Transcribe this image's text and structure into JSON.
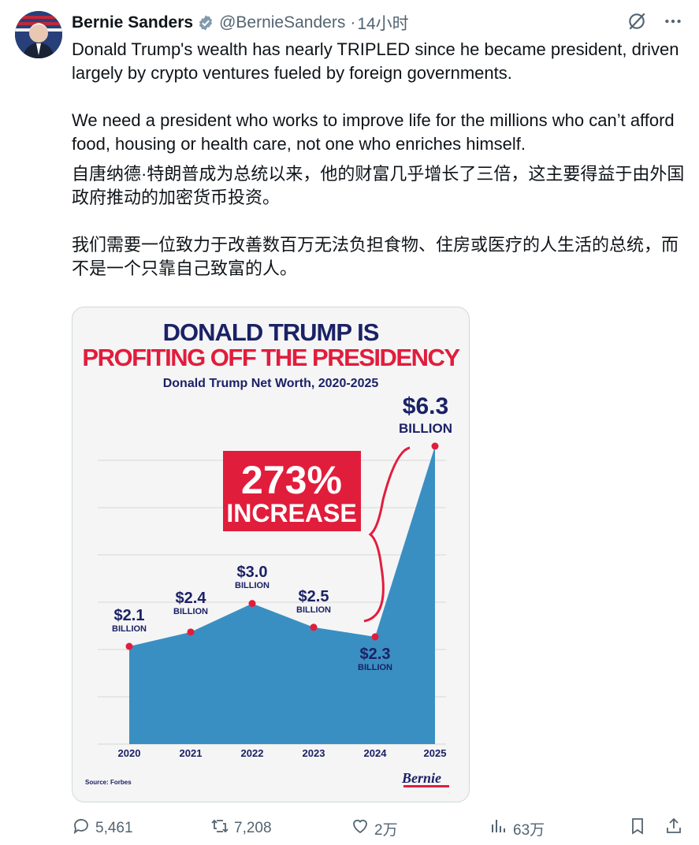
{
  "tweet": {
    "author_name": "Bernie Sanders",
    "handle": "@BernieSanders",
    "separator": "·",
    "time": "14小时",
    "text_en_p1": "Donald Trump's wealth has nearly TRIPLED since he became president, driven largely by crypto ventures fueled by foreign governments.",
    "text_en_p2": "We need a president who works to improve life for the millions who can’t afford food, housing or health care, not one who enriches himself.",
    "text_zh_p1": "自唐纳德·特朗普成为总统以来，他的财富几乎增长了三倍，这主要得益于由外国政府推动的加密货币投资。",
    "text_zh_p2": "我们需要一位致力于改善数百万无法负担食物、住房或医疗的人生活的总统，而不是一个只靠自己致富的人。"
  },
  "icons": {
    "verified": "verified-badge-icon",
    "grok": "grok-icon",
    "more": "more-icon",
    "reply": "reply-icon",
    "retweet": "retweet-icon",
    "like": "like-icon",
    "views": "views-icon",
    "bookmark": "bookmark-icon",
    "share": "share-icon"
  },
  "card": {
    "title_line1": "DONALD TRUMP IS",
    "title_line2": "PROFITING OFF THE PRESIDENCY",
    "subtitle": "Donald Trump Net Worth, 2020-2025",
    "callout_pct": "273%",
    "callout_word": "INCREASE",
    "source": "Source: Forbes",
    "logo": "Bernie"
  },
  "chart_data": {
    "type": "area",
    "title": "Donald Trump Net Worth, 2020-2025",
    "x": [
      "2020",
      "2021",
      "2022",
      "2023",
      "2024",
      "2025"
    ],
    "series": [
      {
        "values": [
          2.1,
          2.4,
          3.0,
          2.5,
          2.3,
          6.3
        ]
      }
    ],
    "data_labels": [
      "$2.1",
      "$2.4",
      "$3.0",
      "$2.5",
      "$2.3",
      "$6.3"
    ],
    "unit_label": "BILLION",
    "grid": true,
    "colors": {
      "area": "#3a8fc2",
      "points": "#e11d3c",
      "text": "#1b2166",
      "accent": "#e11d3c"
    }
  },
  "stats": {
    "replies": "5,461",
    "retweets": "7,208",
    "likes": "2万",
    "views": "63万"
  }
}
